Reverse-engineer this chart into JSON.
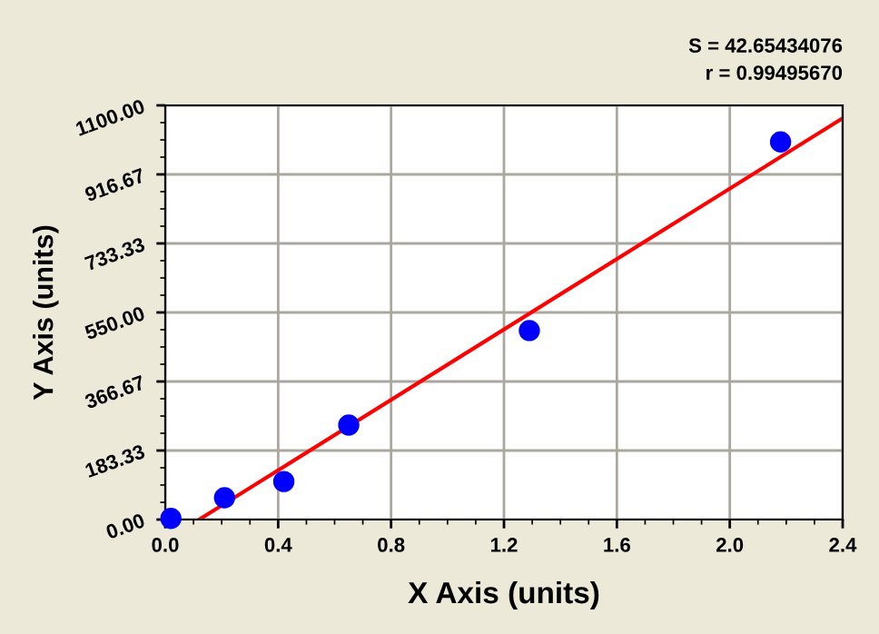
{
  "chart_data": {
    "type": "scatter",
    "xlabel": "X Axis (units)",
    "ylabel": "Y Axis (units)",
    "annotations": [
      "S = 42.65434076",
      "r = 0.99495670"
    ],
    "series": [
      {
        "color": "#0000ff",
        "marker": "circle",
        "x": [
          0.02,
          0.21,
          0.42,
          0.65,
          1.29,
          2.18
        ],
        "values": [
          3,
          58,
          101,
          251,
          502,
          1003
        ]
      },
      {
        "type": "line",
        "color": "#ff0000",
        "marker": "none",
        "line_style": "solid",
        "x": [
          0.12,
          2.4
        ],
        "values": [
          0,
          1066
        ]
      }
    ],
    "xlim": [
      0,
      2.4
    ],
    "xticks": [
      {
        "value": 0,
        "label": "0.0"
      },
      0.4,
      0.8,
      1.2,
      1.6,
      {
        "value": 2.0,
        "label": "2.0"
      },
      2.4
    ],
    "ylim": [
      0,
      1100
    ],
    "yticks": [
      {
        "value": 0,
        "label": "0.00"
      },
      {
        "value": 183.33,
        "label": "183.33"
      },
      {
        "value": 366.67,
        "label": "366.67"
      },
      {
        "value": 550,
        "label": "550.00"
      },
      {
        "value": 733.33,
        "label": "733.33"
      },
      {
        "value": 916.67,
        "label": "916.67"
      },
      {
        "value": 1100,
        "label": "1100.00"
      }
    ],
    "grid": true,
    "legend": false
  }
}
